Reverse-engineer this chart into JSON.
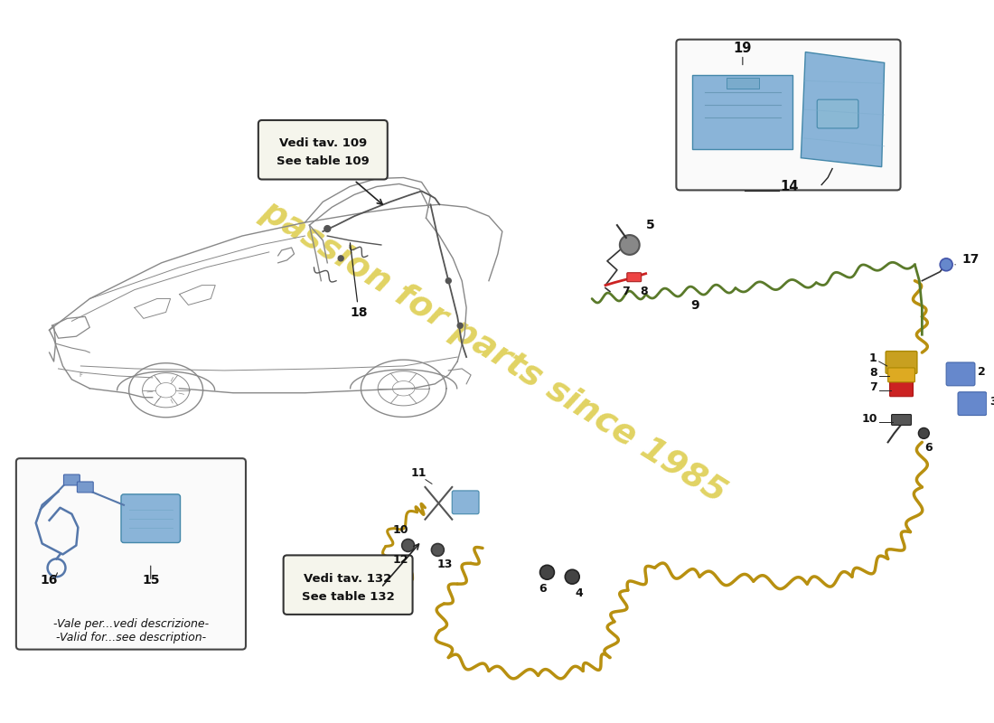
{
  "bg_color": "#ffffff",
  "watermark_text": "passion for parts since 1985",
  "watermark_color": "#d4c020",
  "watermark_alpha": 0.7,
  "callout1_text1": "Vedi tav. 109",
  "callout1_text2": "See table 109",
  "callout2_text1": "Vedi tav. 132",
  "callout2_text2": "See table 132",
  "bottom_note": "-Vale per...vedi descrizione-\n-Valid for...see description-",
  "green_cable": "#5a7a2a",
  "yellow_cable": "#b89010",
  "red_cable": "#cc2222",
  "blue_part": "#8ab4d8",
  "blue_edge": "#4488aa",
  "connector_gold": "#c8a020",
  "connector_red": "#cc2222",
  "connector_blue": "#6688cc",
  "dark_line": "#222222",
  "car_line": "#888888",
  "car_line_dark": "#555555",
  "label_fs": 9,
  "label_color": "#111111",
  "note_color": "#111111"
}
